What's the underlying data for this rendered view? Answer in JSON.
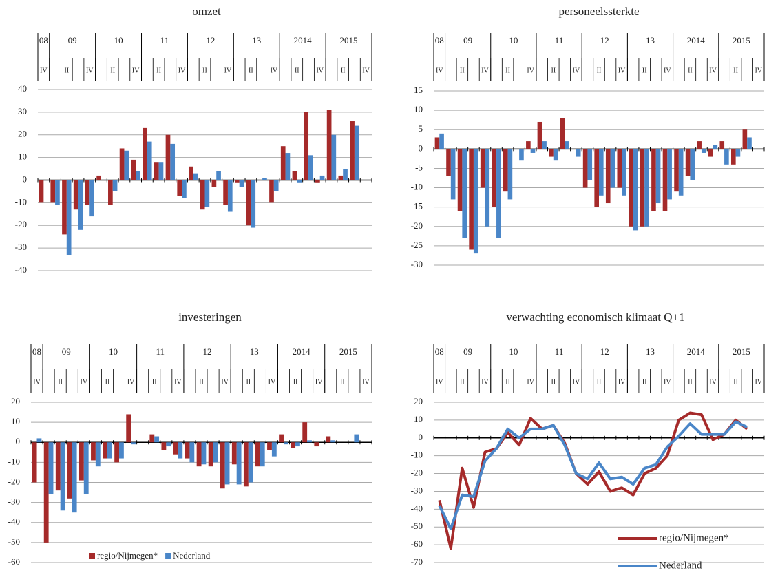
{
  "chart_data": [
    {
      "type": "bar",
      "title": "omzet",
      "years": [
        "08",
        "09",
        "10",
        "11",
        "12",
        "13",
        "2014",
        "2015"
      ],
      "categories": [
        "IV",
        null,
        "II",
        null,
        "IV",
        null,
        "II",
        null,
        "IV",
        null,
        "II",
        null,
        "IV",
        null,
        "II",
        null,
        "IV",
        null,
        "II",
        null,
        "IV",
        null,
        "II",
        null,
        "IV",
        null,
        "II",
        null,
        "IV"
      ],
      "series": [
        {
          "color": "#a52a2a",
          "values": [
            -10,
            -10,
            -24,
            -13,
            -11,
            2,
            -11,
            14,
            9,
            23,
            8,
            20,
            -7,
            6,
            -13,
            -3,
            -11,
            -1,
            -20,
            0,
            -10,
            15,
            4,
            30,
            -1,
            31,
            2,
            26,
            null
          ]
        },
        {
          "color": "#4a86c8",
          "values": [
            0,
            -11,
            -33,
            -22,
            -16,
            0,
            -5,
            13,
            4,
            17,
            8,
            16,
            -8,
            3,
            -12,
            4,
            -14,
            -3,
            -21,
            1,
            -5,
            12,
            -1,
            11,
            2,
            20,
            5,
            24,
            null
          ]
        }
      ],
      "ylim": [
        -40,
        40
      ],
      "yticks": [
        -40,
        -30,
        -20,
        -10,
        0,
        10,
        20,
        30,
        40
      ],
      "grid": true
    },
    {
      "type": "bar",
      "title": "personeelssterkte",
      "years": [
        "08",
        "09",
        "10",
        "11",
        "12",
        "13",
        "2014",
        "2015"
      ],
      "categories": [
        "IV",
        null,
        "II",
        null,
        "IV",
        null,
        "II",
        null,
        "IV",
        null,
        "II",
        null,
        "IV",
        null,
        "II",
        null,
        "IV",
        null,
        "II",
        null,
        "IV",
        null,
        "II",
        null,
        "IV",
        null,
        "II",
        null,
        "IV"
      ],
      "series": [
        {
          "color": "#a52a2a",
          "values": [
            3,
            -7,
            -16,
            -26,
            -10,
            -15,
            -11,
            0,
            2,
            7,
            -2,
            8,
            0,
            -10,
            -15,
            -14,
            -10,
            -20,
            -20,
            -16,
            -16,
            -11,
            -7,
            2,
            -2,
            2,
            -4,
            5,
            null
          ]
        },
        {
          "color": "#4a86c8",
          "values": [
            4,
            -13,
            -23,
            -27,
            -20,
            -23,
            -13,
            -3,
            -1,
            2,
            -3,
            2,
            -2,
            -8,
            -12,
            -10,
            -12,
            -21,
            -20,
            -14,
            -13,
            -12,
            -8,
            -1,
            1,
            -4,
            -2,
            3,
            null
          ]
        }
      ],
      "ylim": [
        -30,
        15
      ],
      "yticks": [
        -30,
        -25,
        -20,
        -15,
        -10,
        -5,
        0,
        5,
        10,
        15
      ],
      "grid": true
    },
    {
      "type": "bar",
      "title": "investeringen",
      "years": [
        "08",
        "09",
        "10",
        "11",
        "12",
        "13",
        "2014",
        "2015"
      ],
      "categories": [
        "IV",
        null,
        "II",
        null,
        "IV",
        null,
        "II",
        null,
        "IV",
        null,
        "II",
        null,
        "IV",
        null,
        "II",
        null,
        "IV",
        null,
        "II",
        null,
        "IV",
        null,
        "II",
        null,
        "IV",
        null,
        "II",
        null,
        "IV"
      ],
      "series": [
        {
          "name": "regio/Nijmegen*",
          "color": "#a52a2a",
          "values": [
            -20,
            -50,
            -24,
            -28,
            -19,
            -9,
            -8,
            -10,
            14,
            0,
            4,
            -4,
            -6,
            -8,
            -12,
            -12,
            -23,
            -11,
            -22,
            -12,
            -4,
            4,
            -3,
            10,
            -2,
            3,
            0,
            0,
            null
          ]
        },
        {
          "name": "Nederland",
          "color": "#4a86c8",
          "values": [
            2,
            -26,
            -34,
            -35,
            -26,
            -12,
            -8,
            -8,
            -1,
            0,
            3,
            -2,
            -8,
            -10,
            -11,
            -10,
            -21,
            -21,
            -20,
            -12,
            -7,
            -1,
            -2,
            1,
            0,
            1,
            0,
            4,
            null
          ]
        }
      ],
      "ylim": [
        -60,
        20
      ],
      "yticks": [
        -60,
        -50,
        -40,
        -30,
        -20,
        -10,
        0,
        10,
        20
      ],
      "grid": true,
      "legend": "bottom"
    },
    {
      "type": "line",
      "title": "verwachting economisch klimaat Q+1",
      "years": [
        "08",
        "09",
        "10",
        "11",
        "12",
        "13",
        "2014",
        "2015"
      ],
      "categories": [
        "IV",
        null,
        "II",
        null,
        "IV",
        null,
        "II",
        null,
        "IV",
        null,
        "II",
        null,
        "IV",
        null,
        "II",
        null,
        "IV",
        null,
        "II",
        null,
        "IV",
        null,
        "II",
        null,
        "IV",
        null,
        "II",
        null,
        "IV"
      ],
      "series": [
        {
          "name": "regio/Nijmegen*",
          "color": "#a52a2a",
          "values": [
            -35,
            -62,
            -17,
            -39,
            -8,
            -6,
            3,
            -4,
            11,
            5,
            7,
            -3,
            -20,
            -26,
            -19,
            -30,
            -28,
            -32,
            -20,
            -17,
            -10,
            10,
            14,
            13,
            -1,
            2,
            10,
            5,
            null
          ]
        },
        {
          "name": "Nederland",
          "color": "#4a86c8",
          "values": [
            -38,
            -51,
            -32,
            -33,
            -13,
            -6,
            5,
            0,
            5,
            5,
            7,
            -4,
            -20,
            -23,
            -14,
            -23,
            -22,
            -26,
            -17,
            -15,
            -5,
            1,
            8,
            2,
            2,
            2,
            9,
            6,
            null
          ]
        }
      ],
      "ylim": [
        -70,
        20
      ],
      "yticks": [
        -70,
        -60,
        -50,
        -40,
        -30,
        -20,
        -10,
        0,
        10,
        20
      ],
      "grid": true,
      "legend": "bottom-right"
    }
  ]
}
